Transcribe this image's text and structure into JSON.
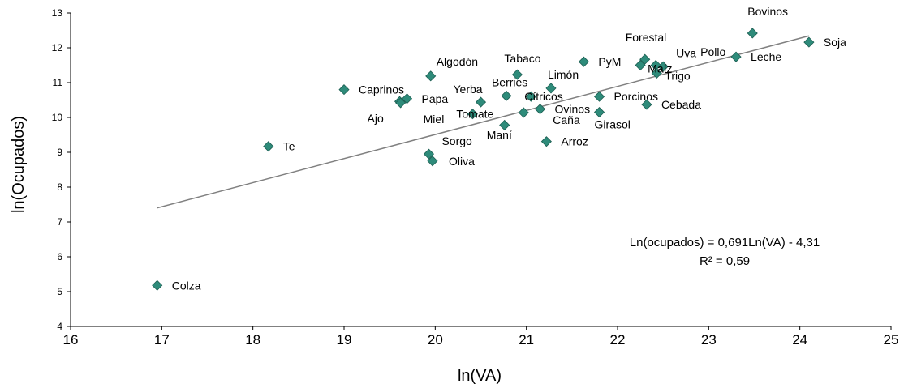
{
  "chart_data": {
    "type": "scatter",
    "xlabel": "ln(VA)",
    "ylabel": "ln(Ocupados)",
    "xlim": [
      16,
      25
    ],
    "ylim": [
      4,
      13
    ],
    "xticks": [
      "16",
      "17",
      "18",
      "19",
      "20",
      "21",
      "22",
      "23",
      "24",
      "25"
    ],
    "yticks": [
      "4",
      "5",
      "6",
      "7",
      "8",
      "9",
      "10",
      "11",
      "12",
      "13"
    ],
    "grid": false,
    "legend": "none",
    "marker_color": "#2e8b7a",
    "trendline": {
      "slope": 0.691,
      "intercept": -4.31,
      "x_range": [
        16.95,
        24.1
      ],
      "color": "#808080"
    },
    "equation": "Ln(ocupados) = 0,691Ln(VA) - 4,31",
    "r_squared": "R² = 0,59",
    "points": [
      {
        "label": "Bovinos",
        "x": 23.48,
        "y": 12.42
      },
      {
        "label": "Soja",
        "x": 24.1,
        "y": 12.16
      },
      {
        "label": "Forestal",
        "x": 22.3,
        "y": 11.67
      },
      {
        "label": "Uva",
        "x": 22.25,
        "y": 11.5
      },
      {
        "label": "Leche",
        "x": 23.3,
        "y": 11.74
      },
      {
        "label": "Pollo",
        "x": 22.5,
        "y": 11.46
      },
      {
        "label": "Maíz",
        "x": 22.42,
        "y": 11.5
      },
      {
        "label": "Trigo",
        "x": 22.43,
        "y": 11.27
      },
      {
        "label": "PyM",
        "x": 21.63,
        "y": 11.6
      },
      {
        "label": "Tabaco",
        "x": 20.9,
        "y": 11.23
      },
      {
        "label": "Algodón",
        "x": 19.95,
        "y": 11.19
      },
      {
        "label": "Limón",
        "x": 21.27,
        "y": 10.84
      },
      {
        "label": "Caprinos",
        "x": 19.0,
        "y": 10.8
      },
      {
        "label": "Berries",
        "x": 20.78,
        "y": 10.62
      },
      {
        "label": "Cítricos",
        "x": 21.05,
        "y": 10.6
      },
      {
        "label": "Porcinos",
        "x": 21.8,
        "y": 10.6
      },
      {
        "label": "Papa",
        "x": 19.69,
        "y": 10.54
      },
      {
        "label": "Yerba",
        "x": 20.5,
        "y": 10.44
      },
      {
        "label": "Cebada",
        "x": 22.32,
        "y": 10.37
      },
      {
        "label": "Ajo",
        "x": 19.61,
        "y": 10.46
      },
      {
        "label": "Miel",
        "x": 19.62,
        "y": 10.42
      },
      {
        "label": "Ovinos",
        "x": 21.15,
        "y": 10.24
      },
      {
        "label": "Caña",
        "x": 20.97,
        "y": 10.14
      },
      {
        "label": "Girasol",
        "x": 21.8,
        "y": 10.15
      },
      {
        "label": "Tomate",
        "x": 20.41,
        "y": 10.1
      },
      {
        "label": "Maní",
        "x": 20.76,
        "y": 9.78
      },
      {
        "label": "Arroz",
        "x": 21.22,
        "y": 9.31
      },
      {
        "label": "Te",
        "x": 18.17,
        "y": 9.17
      },
      {
        "label": "Sorgo",
        "x": 19.93,
        "y": 8.95
      },
      {
        "label": "Oliva",
        "x": 19.97,
        "y": 8.75
      },
      {
        "label": "Colza",
        "x": 16.95,
        "y": 5.18
      }
    ]
  }
}
